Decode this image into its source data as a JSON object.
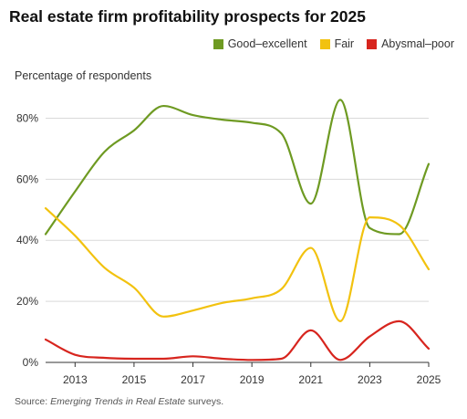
{
  "chart_data": {
    "type": "line",
    "title": "Real estate firm profitability prospects for 2025",
    "ylabel": "Percentage of respondents",
    "xlabel": "",
    "xlim": [
      2012,
      2025
    ],
    "ylim": [
      0,
      90
    ],
    "x_ticks": [
      2013,
      2015,
      2017,
      2019,
      2021,
      2023,
      2025
    ],
    "y_ticks": [
      0,
      20,
      40,
      60,
      80
    ],
    "y_tick_labels": [
      "0%",
      "20%",
      "40%",
      "60%",
      "80%"
    ],
    "grid": "horizontal",
    "legend_position": "top-right",
    "x": [
      2012,
      2013,
      2014,
      2015,
      2016,
      2017,
      2018,
      2019,
      2020,
      2021,
      2022,
      2023,
      2024,
      2025
    ],
    "series": [
      {
        "name": "Good–excellent",
        "color": "#6e9a22",
        "values": [
          42,
          56,
          69,
          76,
          84,
          81,
          79.5,
          78.5,
          75,
          52,
          86,
          44,
          42,
          65
        ]
      },
      {
        "name": "Fair",
        "color": "#f2c20f",
        "values": [
          50.5,
          41.5,
          31,
          24.5,
          15,
          17,
          19.5,
          21,
          24,
          37.5,
          13.5,
          47.5,
          45,
          30.5
        ]
      },
      {
        "name": "Abysmal–poor",
        "color": "#d7251e",
        "values": [
          7.5,
          2.5,
          1.5,
          1.2,
          1.2,
          2,
          1.2,
          0.8,
          1.2,
          10.5,
          0.8,
          8.5,
          13.5,
          4.5
        ]
      }
    ]
  },
  "source": {
    "prefix": "Source: ",
    "italic": "Emerging Trends in Real Estate",
    "suffix": " surveys."
  }
}
